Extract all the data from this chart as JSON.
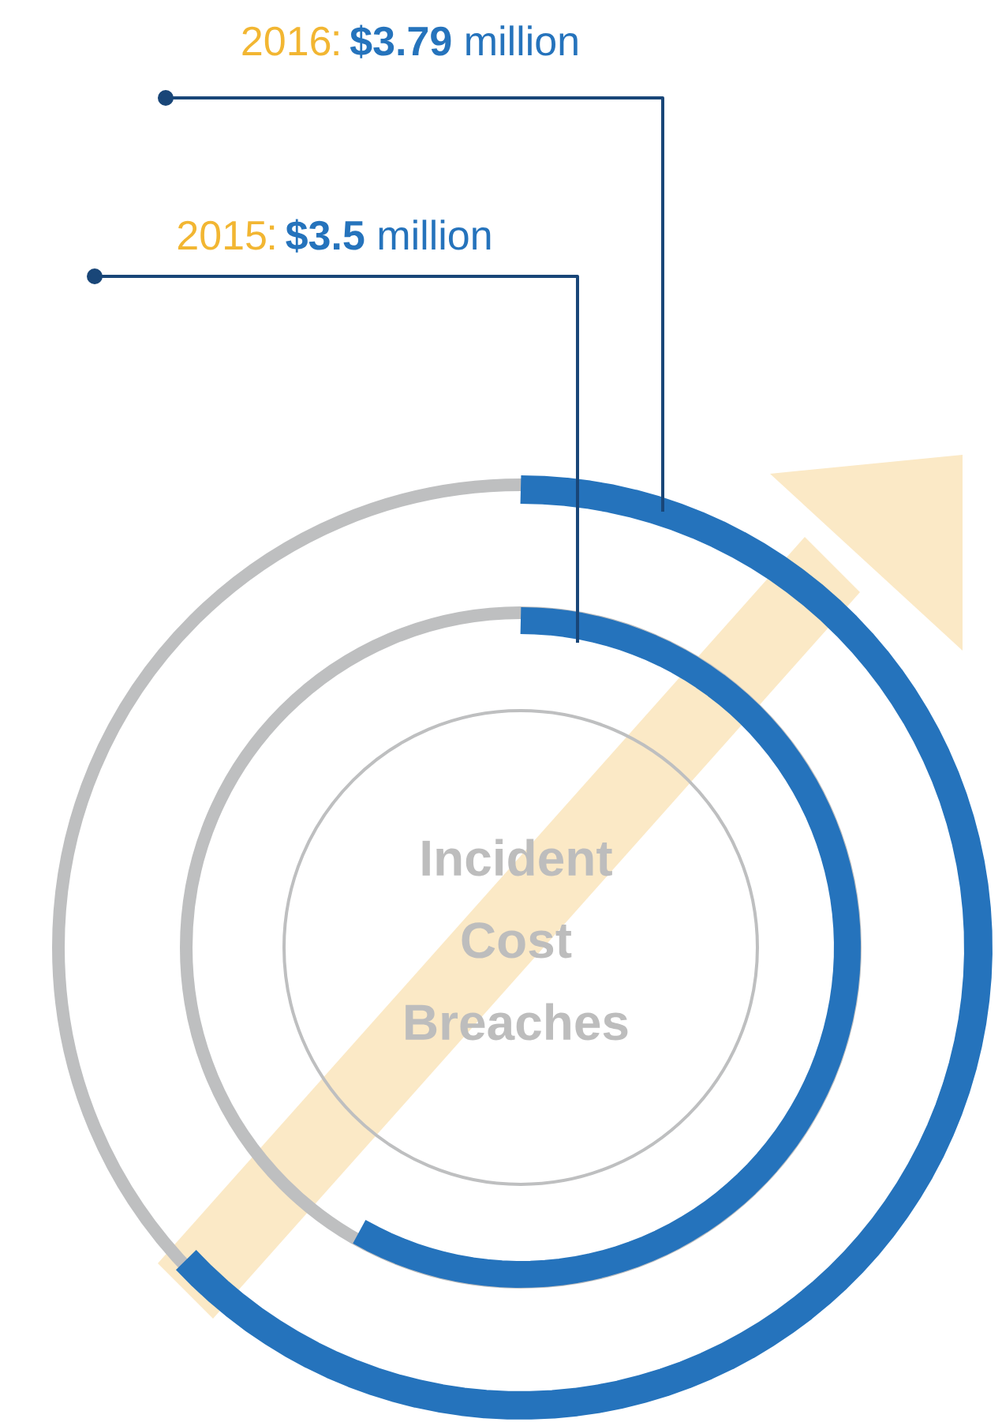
{
  "chart_data": {
    "type": "other",
    "title": "Incident Cost Breaches",
    "categories": [
      "2016",
      "2015"
    ],
    "values": [
      3.79,
      3.5
    ],
    "value_labels": [
      "**$3.79** million",
      "**$3.5** million"
    ],
    "colors": [
      "#2573bc",
      "#2573bc"
    ]
  }
}
